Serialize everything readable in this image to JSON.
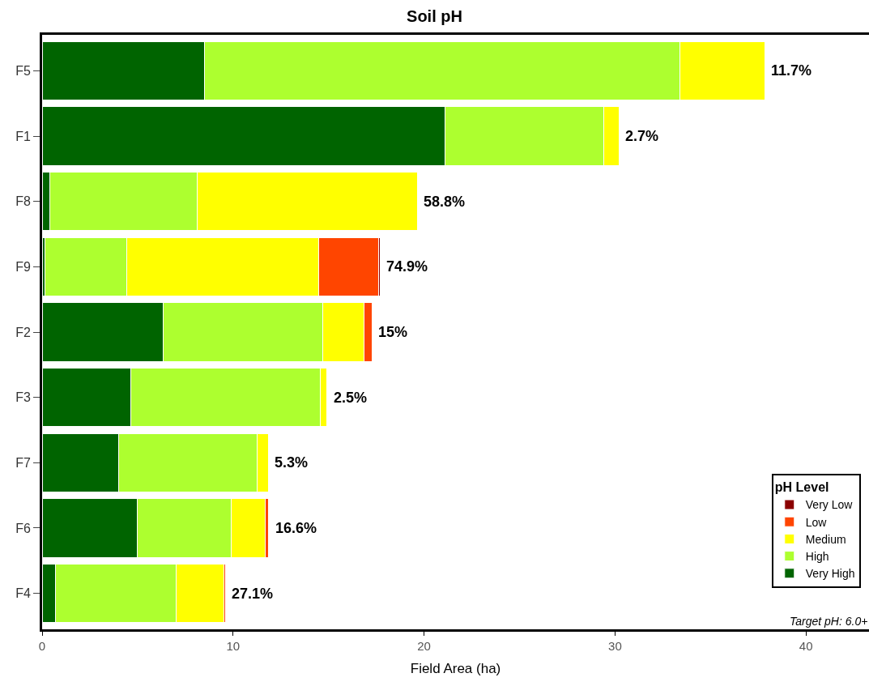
{
  "chart_data": {
    "type": "bar",
    "orientation": "horizontal",
    "stacked": true,
    "title": "Soil pH",
    "xlabel": "Field Area (ha)",
    "legend_title": "pH Level",
    "legend": "bottom right",
    "categories": [
      "F5",
      "F1",
      "F8",
      "F9",
      "F2",
      "F3",
      "F7",
      "F6",
      "F4"
    ],
    "series": [
      {
        "name": "Very High",
        "color": "#006400",
        "values": [
          8.5,
          21.1,
          0.4,
          0.15,
          6.35,
          4.65,
          4.0,
          5.0,
          0.7
        ]
      },
      {
        "name": "High",
        "color": "#adff2f",
        "values": [
          24.9,
          8.3,
          7.7,
          4.3,
          8.35,
          9.9,
          7.25,
          4.9,
          6.3
        ]
      },
      {
        "name": "Medium",
        "color": "#ffff00",
        "values": [
          4.45,
          0.8,
          11.55,
          10.05,
          2.15,
          0.37,
          0.6,
          1.8,
          2.5
        ]
      },
      {
        "name": "Low",
        "color": "#ff4500",
        "values": [
          null,
          null,
          null,
          3.1,
          0.42,
          null,
          null,
          0.17,
          0.1
        ]
      },
      {
        "name": "Very Low",
        "color": "#8b0000",
        "values": [
          null,
          null,
          null,
          0.1,
          null,
          null,
          null,
          null,
          null
        ]
      }
    ],
    "xlim": [
      0,
      43.3
    ],
    "xticks": [
      0,
      10,
      20,
      30,
      40
    ],
    "annotations": [
      {
        "text": "11.7%",
        "x": 37.85,
        "y": "F5"
      },
      {
        "text": "2.7%",
        "x": 30.2,
        "y": "F1"
      },
      {
        "text": "58.8%",
        "x": 19.65,
        "y": "F8"
      },
      {
        "text": "74.9%",
        "x": 17.7,
        "y": "F9"
      },
      {
        "text": "15%",
        "x": 17.27,
        "y": "F2"
      },
      {
        "text": "2.5%",
        "x": 14.92,
        "y": "F3"
      },
      {
        "text": "5.3%",
        "x": 11.85,
        "y": "F7"
      },
      {
        "text": "16.6%",
        "x": 11.87,
        "y": "F6"
      },
      {
        "text": "27.1%",
        "x": 9.6,
        "y": "F4"
      },
      "Target pH: 6.0+"
    ]
  }
}
